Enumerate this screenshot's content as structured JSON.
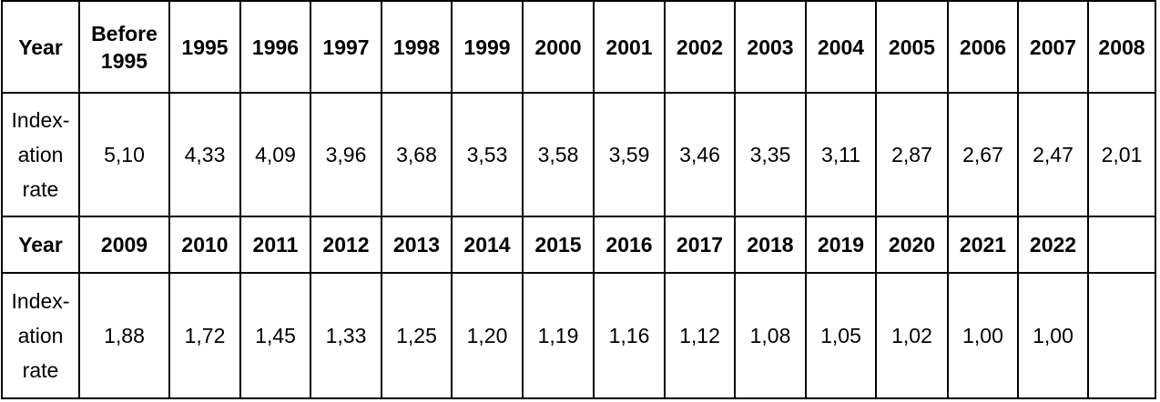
{
  "table": {
    "rows": [
      [
        "Year",
        "Before 1995",
        "1995",
        "1996",
        "1997",
        "1998",
        "1999",
        "2000",
        "2001",
        "2002",
        "2003",
        "2004",
        "2005",
        "2006",
        "2007",
        "2008"
      ],
      [
        "Index-ation rate",
        "5,10",
        "4,33",
        "4,09",
        "3,96",
        "3,68",
        "3,53",
        "3,58",
        "3,59",
        "3,46",
        "3,35",
        "3,11",
        "2,87",
        "2,67",
        "2,47",
        "2,01"
      ],
      [
        "Year",
        "2009",
        "2010",
        "2011",
        "2012",
        "2013",
        "2014",
        "2015",
        "2016",
        "2017",
        "2018",
        "2019",
        "2020",
        "2021",
        "2022"
      ],
      [
        "Index-ation rate",
        "1,88",
        "1,72",
        "1,45",
        "1,33",
        "1,25",
        "1,20",
        "1,19",
        "1,16",
        "1,12",
        "1,08",
        "1,05",
        "1,02",
        "1,00",
        "1,00"
      ]
    ]
  }
}
